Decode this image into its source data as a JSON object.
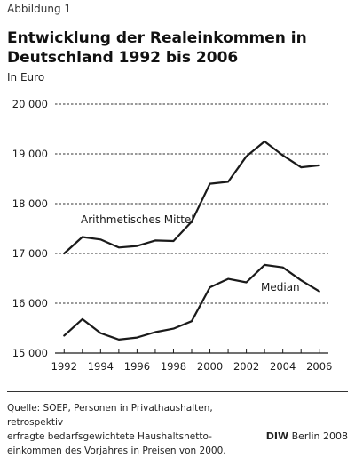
{
  "header": {
    "figure_label": "Abbildung 1",
    "title_line1": "Entwicklung der Realeinkommen in",
    "title_line2": "Deutschland 1992 bis 2006",
    "unit": "In Euro"
  },
  "footer": {
    "source_line1": "Quelle: SOEP, Personen in Privathaushalten, retrospektiv",
    "source_line2": "erfragte bedarfsgewichtete Haushaltsnetto-",
    "source_line3": "einkommen des Vorjahres in Preisen von 2000.",
    "credit_brand": "DIW",
    "credit_rest": "Berlin 2008"
  },
  "chart_data": {
    "type": "line",
    "title": "Entwicklung der Realeinkommen in Deutschland 1992 bis 2006",
    "ylabel": "In Euro",
    "xlabel": "",
    "x": [
      1992,
      1993,
      1994,
      1995,
      1996,
      1997,
      1998,
      1999,
      2000,
      2001,
      2002,
      2003,
      2004,
      2005,
      2006
    ],
    "xlim": [
      1991.5,
      2006.5
    ],
    "ylim": [
      15000,
      20000
    ],
    "xticks": [
      1992,
      1994,
      1996,
      1998,
      2000,
      2002,
      2004,
      2006
    ],
    "xtick_labels": [
      "1992",
      "1994",
      "1996",
      "1998",
      "2000",
      "2002",
      "2004",
      "2006"
    ],
    "yticks": [
      15000,
      16000,
      17000,
      18000,
      19000,
      20000
    ],
    "ytick_labels": [
      "15 000",
      "16 000",
      "17 000",
      "18 000",
      "19 000",
      "20 000"
    ],
    "grid": "horizontal dashed",
    "legend": "none (series labelled directly on the chart)",
    "line_color": "#1a1a1a",
    "series": [
      {
        "name": "Arithmetisches Mittel",
        "values": [
          17000,
          17330,
          17280,
          17120,
          17150,
          17260,
          17250,
          17640,
          18400,
          18440,
          18950,
          19250,
          18970,
          18730,
          18770
        ]
      },
      {
        "name": "Median",
        "values": [
          15350,
          15680,
          15400,
          15270,
          15310,
          15420,
          15490,
          15640,
          16320,
          16490,
          16420,
          16770,
          16720,
          16460,
          16240
        ]
      }
    ]
  }
}
